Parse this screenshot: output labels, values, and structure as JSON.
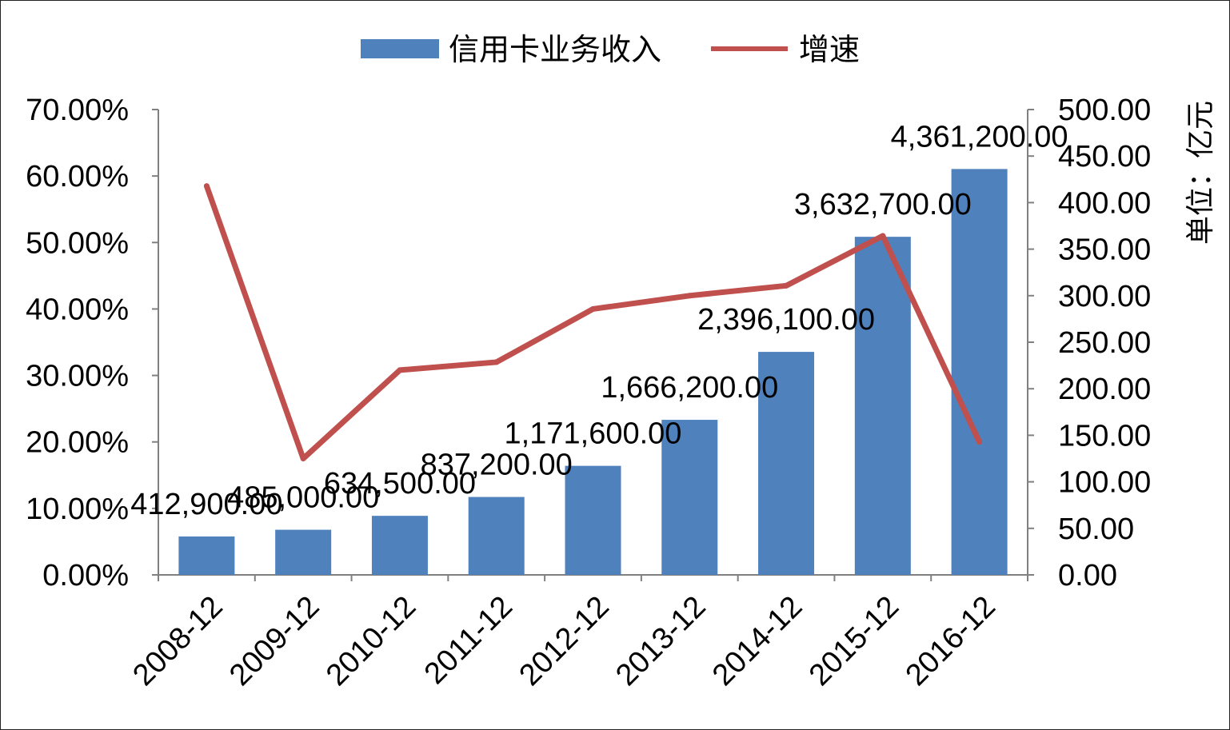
{
  "chart_data": {
    "type": "bar",
    "categories": [
      "2008-12",
      "2009-12",
      "2010-12",
      "2011-12",
      "2012-12",
      "2013-12",
      "2014-12",
      "2015-12",
      "2016-12"
    ],
    "series": [
      {
        "name": "信用卡业务收入",
        "type": "bar",
        "axis": "right",
        "color": "#4F81BD",
        "values": [
          41.29,
          48.5,
          63.45,
          83.72,
          117.16,
          166.62,
          239.61,
          363.27,
          436.12
        ],
        "labels": [
          "412,900.00",
          "485,000.00",
          "634,500.00",
          "837,200.00",
          "1,171,600.00",
          "1,666,200.00",
          "2,396,100.00",
          "3,632,700.00",
          "4,361,200.00"
        ]
      },
      {
        "name": "增速",
        "type": "line",
        "axis": "left",
        "color": "#C0504D",
        "values": [
          0.585,
          0.175,
          0.308,
          0.32,
          0.4,
          0.42,
          0.435,
          0.51,
          0.2
        ]
      }
    ],
    "y_left": {
      "ticks": [
        "0.00%",
        "10.00%",
        "20.00%",
        "30.00%",
        "40.00%",
        "50.00%",
        "60.00%",
        "70.00%"
      ],
      "range": [
        0,
        0.7
      ]
    },
    "y_right": {
      "ticks": [
        "0.00",
        "50.00",
        "100.00",
        "150.00",
        "200.00",
        "250.00",
        "300.00",
        "350.00",
        "400.00",
        "450.00",
        "500.00"
      ],
      "range": [
        0,
        500
      ],
      "label": "单位：亿元"
    },
    "legend_position": "top-center",
    "grid": false
  }
}
